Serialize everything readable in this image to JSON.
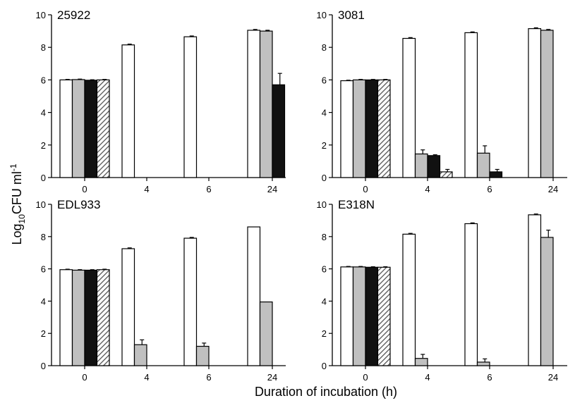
{
  "figure": {
    "xlabel": "Duration of incubation (h)",
    "ylabel_main": "Log",
    "ylabel_sub": "10",
    "ylabel_tail": "CFU ml",
    "ylabel_sup": "-1"
  },
  "chart_data": [
    {
      "type": "bar",
      "title": "25922",
      "categories": [
        "0",
        "4",
        "6",
        "24"
      ],
      "ylim": [
        0,
        10
      ],
      "yticks": [
        "0",
        "2",
        "4",
        "6",
        "8",
        "10"
      ],
      "series": [
        {
          "fill": "#ffffff",
          "values": [
            6.0,
            8.15,
            8.65,
            9.05
          ],
          "errors": [
            0.03,
            0.05,
            0.05,
            0.05
          ]
        },
        {
          "fill": "#c0c0c0",
          "values": [
            6.02,
            null,
            0.0,
            9.0
          ],
          "errors": [
            0.03,
            null,
            0,
            0.05
          ]
        },
        {
          "fill": "#111111",
          "values": [
            5.98,
            null,
            0.0,
            5.7
          ],
          "errors": [
            0.03,
            null,
            0,
            0.7
          ]
        },
        {
          "fill": "hatch",
          "values": [
            6.0,
            null,
            0.0,
            null
          ],
          "errors": [
            0.03,
            null,
            0,
            null
          ]
        }
      ]
    },
    {
      "type": "bar",
      "title": "3081",
      "categories": [
        "0",
        "4",
        "6",
        "24"
      ],
      "ylim": [
        0,
        10
      ],
      "yticks": [
        "0",
        "2",
        "4",
        "6",
        "8",
        "10"
      ],
      "series": [
        {
          "fill": "#ffffff",
          "values": [
            5.95,
            8.55,
            8.9,
            9.15
          ],
          "errors": [
            0.03,
            0.05,
            0.05,
            0.05
          ]
        },
        {
          "fill": "#c0c0c0",
          "values": [
            6.0,
            1.45,
            1.5,
            9.05
          ],
          "errors": [
            0.03,
            0.25,
            0.45,
            0.05
          ]
        },
        {
          "fill": "#111111",
          "values": [
            6.0,
            1.35,
            0.35,
            null
          ],
          "errors": [
            0.03,
            0.05,
            0.15,
            null
          ]
        },
        {
          "fill": "hatch",
          "values": [
            6.0,
            0.35,
            null,
            null
          ],
          "errors": [
            0.03,
            0.15,
            null,
            null
          ]
        }
      ]
    },
    {
      "type": "bar",
      "title": "EDL933",
      "categories": [
        "0",
        "4",
        "6",
        "24"
      ],
      "ylim": [
        0,
        10
      ],
      "yticks": [
        "0",
        "2",
        "4",
        "6",
        "8",
        "10"
      ],
      "series": [
        {
          "fill": "#ffffff",
          "values": [
            5.95,
            7.25,
            7.9,
            8.6
          ],
          "errors": [
            0.03,
            0.05,
            0.05,
            0.0
          ]
        },
        {
          "fill": "#c0c0c0",
          "values": [
            5.92,
            1.3,
            1.2,
            3.95
          ],
          "errors": [
            0.03,
            0.3,
            0.2,
            0.0
          ]
        },
        {
          "fill": "#111111",
          "values": [
            5.92,
            null,
            null,
            null
          ],
          "errors": [
            0.03,
            null,
            null,
            null
          ]
        },
        {
          "fill": "hatch",
          "values": [
            5.95,
            null,
            null,
            null
          ],
          "errors": [
            0.03,
            null,
            null,
            null
          ]
        }
      ]
    },
    {
      "type": "bar",
      "title": "E318N",
      "categories": [
        "0",
        "4",
        "6",
        "24"
      ],
      "ylim": [
        0,
        10
      ],
      "yticks": [
        "0",
        "2",
        "4",
        "6",
        "8",
        "10"
      ],
      "series": [
        {
          "fill": "#ffffff",
          "values": [
            6.12,
            8.15,
            8.8,
            9.35
          ],
          "errors": [
            0.03,
            0.05,
            0.05,
            0.05
          ]
        },
        {
          "fill": "#c0c0c0",
          "values": [
            6.12,
            0.45,
            0.22,
            7.95
          ],
          "errors": [
            0.03,
            0.25,
            0.2,
            0.45
          ]
        },
        {
          "fill": "#111111",
          "values": [
            6.1,
            null,
            null,
            null
          ],
          "errors": [
            0.03,
            null,
            null,
            null
          ]
        },
        {
          "fill": "hatch",
          "values": [
            6.1,
            null,
            null,
            null
          ],
          "errors": [
            0.03,
            null,
            null,
            null
          ]
        }
      ]
    }
  ]
}
